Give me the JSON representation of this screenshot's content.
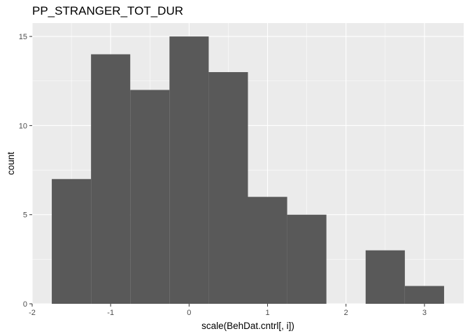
{
  "chart_data": {
    "type": "bar",
    "title": "PP_STRANGER_TOT_DUR",
    "xlabel": "scale(BehDat.cntrl[, i])",
    "ylabel": "count",
    "bins": [
      {
        "x0": -1.75,
        "x1": -1.25,
        "count": 7
      },
      {
        "x0": -1.25,
        "x1": -0.75,
        "count": 14
      },
      {
        "x0": -0.75,
        "x1": -0.25,
        "count": 12
      },
      {
        "x0": -0.25,
        "x1": 0.25,
        "count": 15
      },
      {
        "x0": 0.25,
        "x1": 0.75,
        "count": 13
      },
      {
        "x0": 0.75,
        "x1": 1.25,
        "count": 6
      },
      {
        "x0": 1.25,
        "x1": 1.75,
        "count": 5
      },
      {
        "x0": 1.75,
        "x1": 2.25,
        "count": 0
      },
      {
        "x0": 2.25,
        "x1": 2.75,
        "count": 3
      },
      {
        "x0": 2.75,
        "x1": 3.25,
        "count": 1
      }
    ],
    "xlim": [
      -2,
      3.5
    ],
    "ylim": [
      0,
      15.75
    ],
    "xticks": [
      "-2",
      "-1",
      "0",
      "1",
      "2",
      "3"
    ],
    "yticks": [
      "0",
      "5",
      "10",
      "15"
    ],
    "grid": true,
    "colors": {
      "bar": "#595959",
      "panel": "#ebebeb",
      "grid": "#ffffff"
    }
  }
}
